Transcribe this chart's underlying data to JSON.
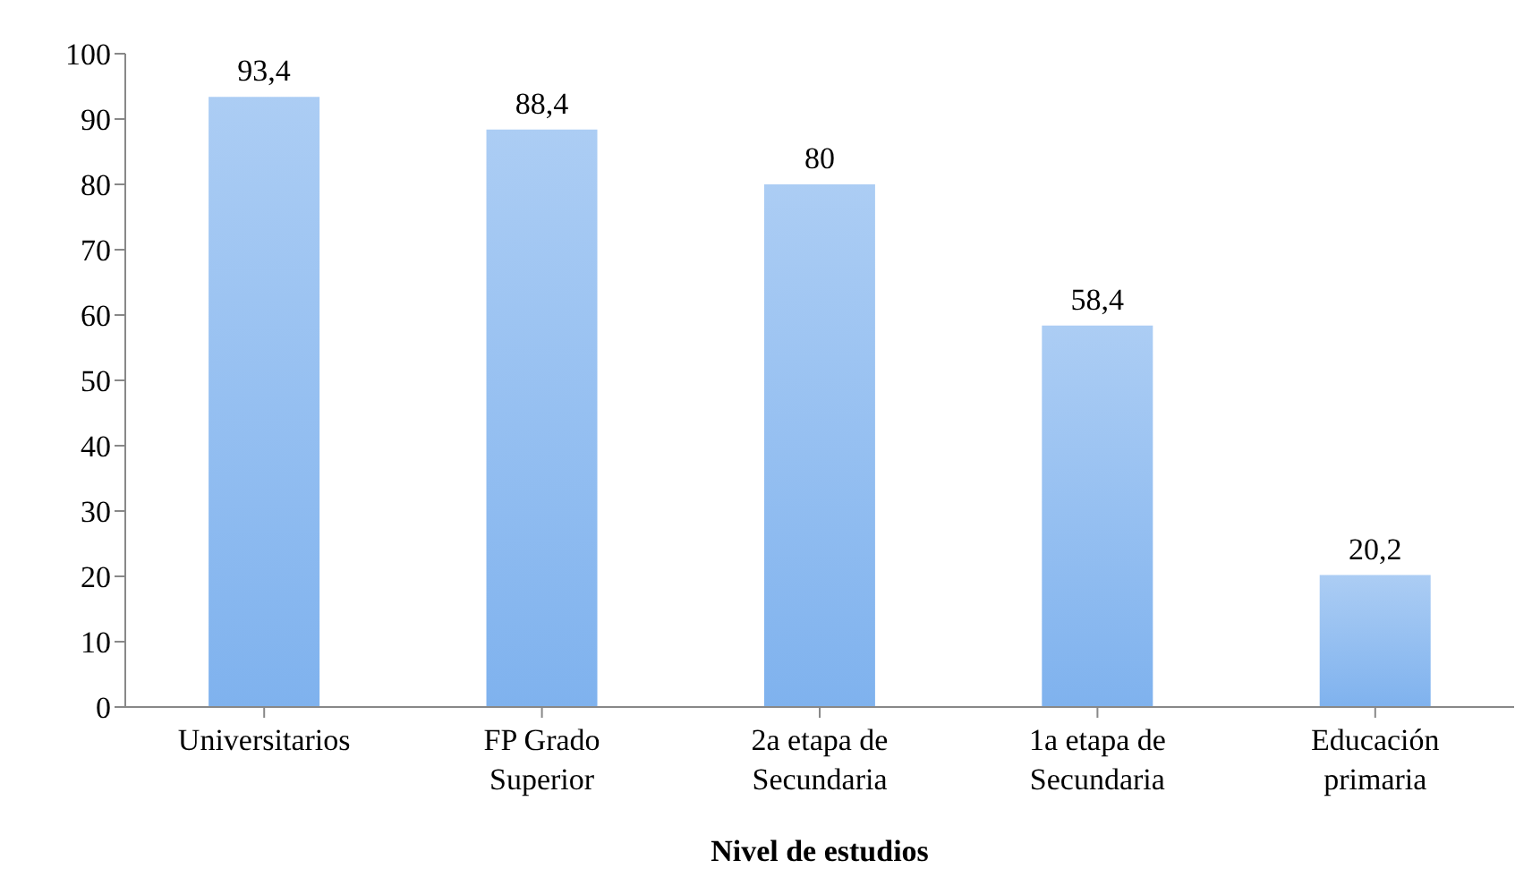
{
  "chart_data": {
    "type": "bar",
    "xlabel": "Nivel de estudios",
    "categories": [
      "Universitarios",
      "FP Grado Superior",
      "2a etapa de Secundaria",
      "1a etapa de Secundaria",
      "Educación primaria"
    ],
    "values": [
      93.4,
      88.4,
      80,
      58.4,
      20.2
    ],
    "value_labels": [
      "93,4",
      "88,4",
      "80",
      "58,4",
      "20,2"
    ],
    "color": "#7fb2ee",
    "ylim": [
      0,
      100
    ],
    "yticks": [
      0,
      10,
      20,
      30,
      40,
      50,
      60,
      70,
      80,
      90,
      100
    ],
    "grid": false,
    "legend": false
  }
}
